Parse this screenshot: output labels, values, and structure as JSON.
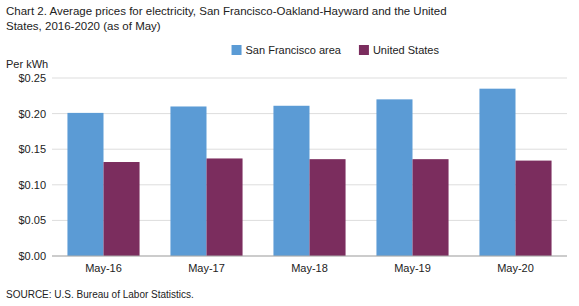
{
  "chart_data": {
    "type": "bar",
    "title": "Chart 2. Average prices for electricity, San Francisco-Oakland-Hayward  and the United",
    "subtitle": "States, 2016-2020  (as of May)",
    "ylabel": "Per kWh",
    "source": "SOURCE: U.S. Bureau of Labor Statistics.",
    "categories": [
      "May-16",
      "May-17",
      "May-18",
      "May-19",
      "May-20"
    ],
    "series": [
      {
        "name": "San Francisco area",
        "color": "#5B9BD5",
        "values": [
          0.201,
          0.21,
          0.211,
          0.22,
          0.235
        ]
      },
      {
        "name": "United States",
        "color": "#7B2D5E",
        "values": [
          0.132,
          0.137,
          0.136,
          0.136,
          0.134
        ]
      }
    ],
    "ylim": [
      0,
      0.25
    ],
    "yticks": [
      {
        "value": 0.0,
        "label": "$0.00"
      },
      {
        "value": 0.05,
        "label": "$0.05"
      },
      {
        "value": 0.1,
        "label": "$0.10"
      },
      {
        "value": 0.15,
        "label": "$0.15"
      },
      {
        "value": 0.2,
        "label": "$0.20"
      },
      {
        "value": 0.25,
        "label": "$0.25"
      }
    ],
    "grid": true,
    "legend": "top"
  }
}
